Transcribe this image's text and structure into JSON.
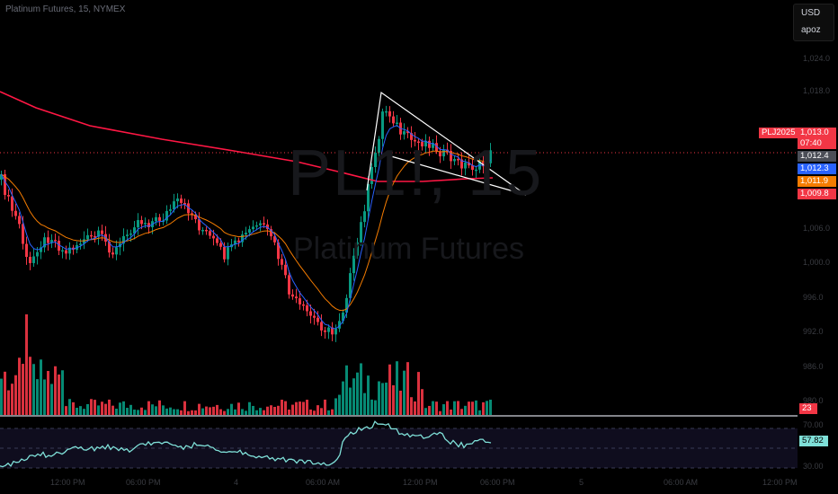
{
  "header": {
    "symbol_line": "Platinum Futures, 15, NYMEX"
  },
  "top_right": {
    "currency": "USD",
    "user": "apoz"
  },
  "watermark": {
    "ticker": "PL1!, 15",
    "name": "Platinum Futures"
  },
  "price_axis": {
    "labels": [
      "1,024.0",
      "1,018.0",
      "1,006.0",
      "1,000.0",
      "996.0",
      "992.0",
      "986.0",
      "980.0"
    ]
  },
  "price_tags": {
    "symbol": "PLJ2025",
    "last": "1,013.0",
    "countdown": "07:40",
    "ema_fast": "1,012.4",
    "ema_mid": "1,012.3",
    "ema_slow": "1,011.9",
    "ema_long": "1,009.8",
    "volume": "23",
    "rsi": "57.82"
  },
  "colors": {
    "up": "#089981",
    "down": "#f23645",
    "ema_fast": "#2962ff",
    "ema_slow": "#f57c00",
    "ema_long": "#ff1744",
    "rsi": "#7fe0d8",
    "pattern": "#ffffff",
    "tag_gray": "#4b4e57"
  },
  "time_axis": {
    "labels": [
      "12:00 PM",
      "06:00 PM",
      "4",
      "06:00 AM",
      "12:00 PM",
      "06:00 PM",
      "5",
      "06:00 AM",
      "12:00 PM"
    ]
  },
  "rsi_panel": {
    "labels": [
      "70.00",
      "30.00"
    ]
  }
}
